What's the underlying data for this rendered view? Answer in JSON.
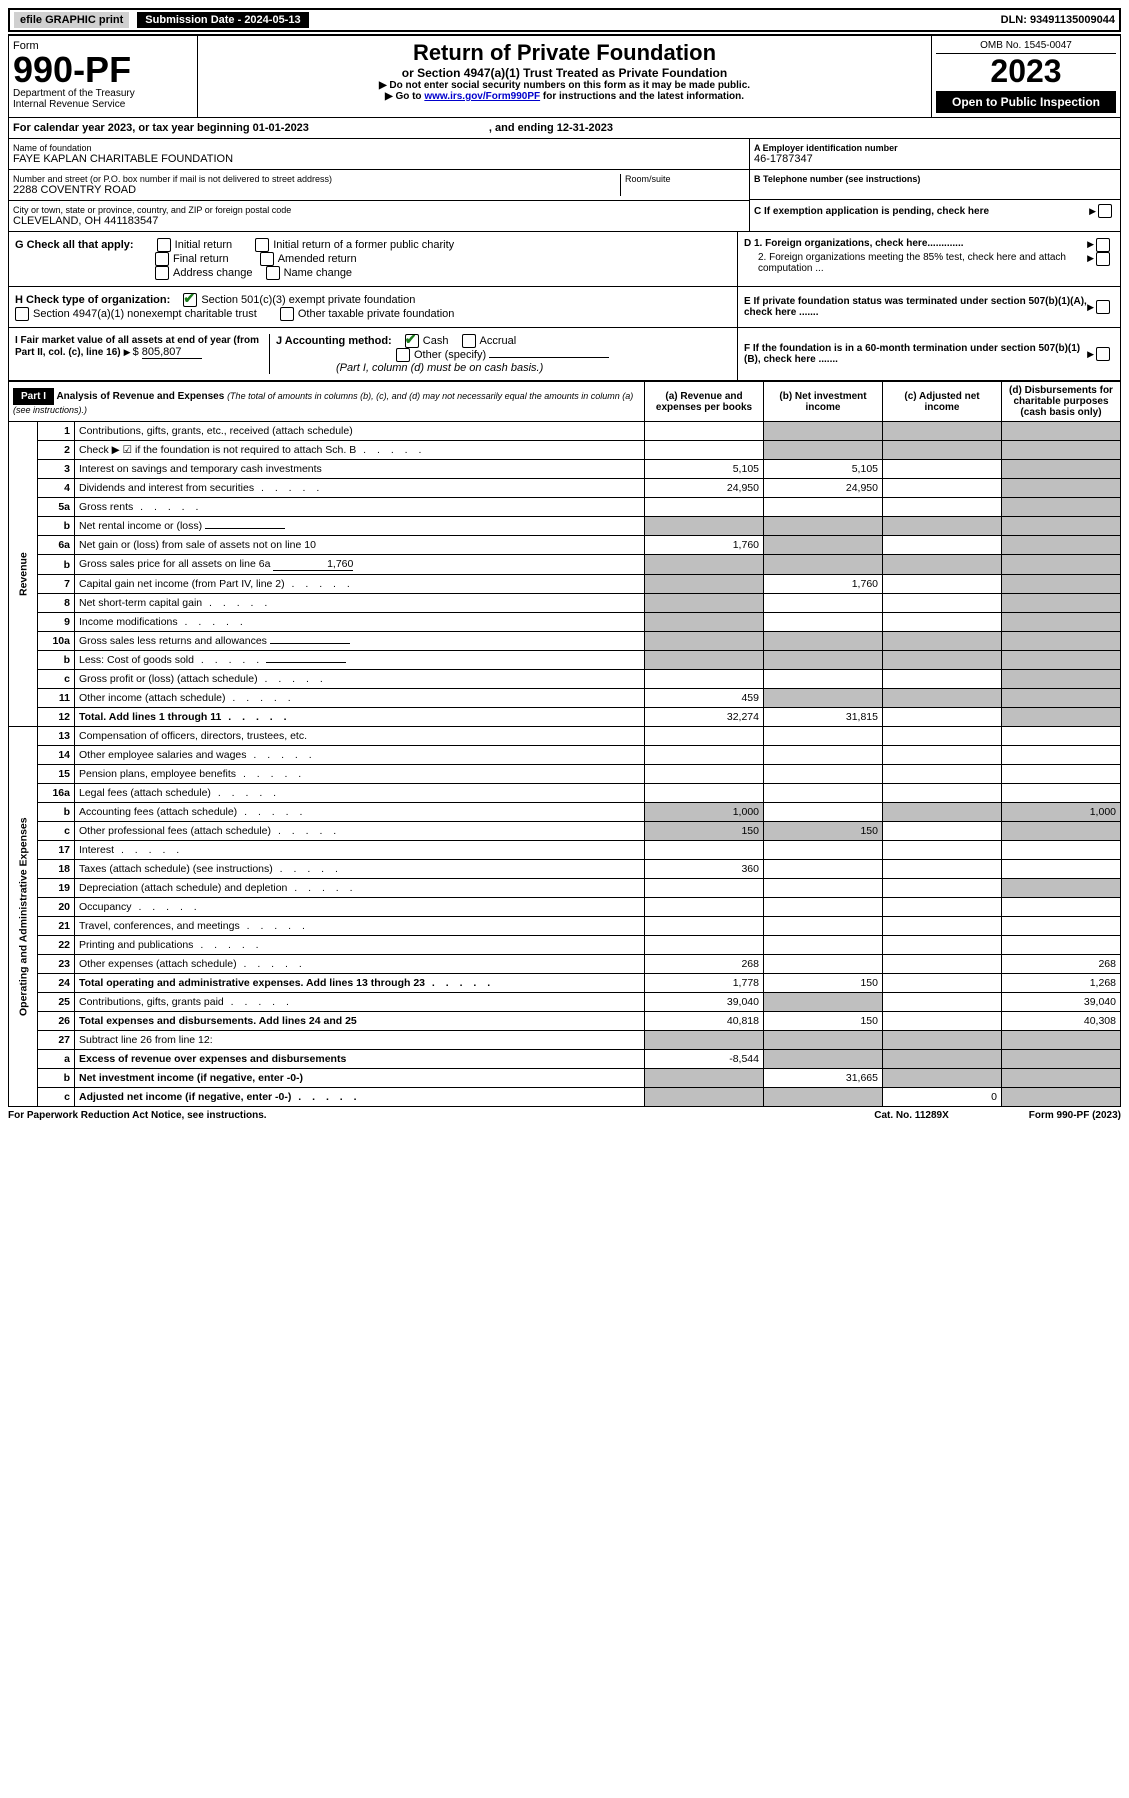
{
  "topbar": {
    "efile": "efile GRAPHIC print",
    "sub_label": "Submission Date - 2024-05-13",
    "dln": "DLN: 93491135009044"
  },
  "header": {
    "form_word": "Form",
    "form_num": "990-PF",
    "dept1": "Department of the Treasury",
    "dept2": "Internal Revenue Service",
    "title": "Return of Private Foundation",
    "subtitle": "or Section 4947(a)(1) Trust Treated as Private Foundation",
    "note1": "▶ Do not enter social security numbers on this form as it may be made public.",
    "note2_pre": "▶ Go to ",
    "note2_link": "www.irs.gov/Form990PF",
    "note2_post": " for instructions and the latest information.",
    "omb": "OMB No. 1545-0047",
    "year": "2023",
    "open": "Open to Public Inspection"
  },
  "cal": {
    "text": "For calendar year 2023, or tax year beginning 01-01-2023",
    "end": ", and ending 12-31-2023"
  },
  "id": {
    "name_lbl": "Name of foundation",
    "name": "FAYE KAPLAN CHARITABLE FOUNDATION",
    "street_lbl": "Number and street (or P.O. box number if mail is not delivered to street address)",
    "room_lbl": "Room/suite",
    "street": "2288 COVENTRY ROAD",
    "city_lbl": "City or town, state or province, country, and ZIP or foreign postal code",
    "city": "CLEVELAND, OH  441183547",
    "a_lbl": "A Employer identification number",
    "a_val": "46-1787347",
    "b_lbl": "B Telephone number (see instructions)",
    "c_lbl": "C If exemption application is pending, check here",
    "d1": "D 1. Foreign organizations, check here.............",
    "d2": "2. Foreign organizations meeting the 85% test, check here and attach computation ...",
    "e": "E  If private foundation status was terminated under section 507(b)(1)(A), check here .......",
    "f": "F  If the foundation is in a 60-month termination under section 507(b)(1)(B), check here ......."
  },
  "g": {
    "label": "G Check all that apply:",
    "initial": "Initial return",
    "initial_former": "Initial return of a former public charity",
    "final": "Final return",
    "amended": "Amended return",
    "address": "Address change",
    "name": "Name change"
  },
  "h": {
    "label": "H Check type of organization:",
    "s501": "Section 501(c)(3) exempt private foundation",
    "s4947": "Section 4947(a)(1) nonexempt charitable trust",
    "other_tax": "Other taxable private foundation"
  },
  "i": {
    "label": "I Fair market value of all assets at end of year (from Part II, col. (c), line 16)",
    "val": "805,807"
  },
  "j": {
    "label": "J Accounting method:",
    "cash": "Cash",
    "accrual": "Accrual",
    "other": "Other (specify)",
    "note": "(Part I, column (d) must be on cash basis.)"
  },
  "part1": {
    "label": "Part I",
    "title": "Analysis of Revenue and Expenses",
    "note": "(The total of amounts in columns (b), (c), and (d) may not necessarily equal the amounts in column (a) (see instructions).)",
    "col_a": "(a)  Revenue and expenses per books",
    "col_b": "(b)  Net investment income",
    "col_c": "(c)  Adjusted net income",
    "col_d": "(d)  Disbursements for charitable purposes (cash basis only)"
  },
  "vlabels": {
    "revenue": "Revenue",
    "expenses": "Operating and Administrative Expenses"
  },
  "rows": [
    {
      "n": "1",
      "d": "Contributions, gifts, grants, etc., received (attach schedule)",
      "a": "",
      "b": "",
      "c": "",
      "dd": ""
    },
    {
      "n": "2",
      "d": "Check ▶ ☑ if the foundation is not required to attach Sch. B",
      "a": "",
      "b": "",
      "c": "",
      "dd": "",
      "dots": true
    },
    {
      "n": "3",
      "d": "Interest on savings and temporary cash investments",
      "a": "5,105",
      "b": "5,105",
      "c": "",
      "dd": ""
    },
    {
      "n": "4",
      "d": "Dividends and interest from securities",
      "a": "24,950",
      "b": "24,950",
      "c": "",
      "dd": "",
      "dots": true
    },
    {
      "n": "5a",
      "d": "Gross rents",
      "a": "",
      "b": "",
      "c": "",
      "dd": "",
      "dots": true
    },
    {
      "n": "b",
      "d": "Net rental income or (loss)",
      "a": "",
      "b": "",
      "c": "",
      "dd": "",
      "inline": true
    },
    {
      "n": "6a",
      "d": "Net gain or (loss) from sale of assets not on line 10",
      "a": "1,760",
      "b": "",
      "c": "",
      "dd": ""
    },
    {
      "n": "b",
      "d": "Gross sales price for all assets on line 6a",
      "a": "",
      "b": "",
      "c": "",
      "dd": "",
      "inline": true,
      "inline_val": "1,760"
    },
    {
      "n": "7",
      "d": "Capital gain net income (from Part IV, line 2)",
      "a": "",
      "b": "1,760",
      "c": "",
      "dd": "",
      "dots": true
    },
    {
      "n": "8",
      "d": "Net short-term capital gain",
      "a": "",
      "b": "",
      "c": "",
      "dd": "",
      "dots": true
    },
    {
      "n": "9",
      "d": "Income modifications",
      "a": "",
      "b": "",
      "c": "",
      "dd": "",
      "dots": true
    },
    {
      "n": "10a",
      "d": "Gross sales less returns and allowances",
      "a": "",
      "b": "",
      "c": "",
      "dd": "",
      "inline": true
    },
    {
      "n": "b",
      "d": "Less: Cost of goods sold",
      "a": "",
      "b": "",
      "c": "",
      "dd": "",
      "inline": true,
      "dots": true
    },
    {
      "n": "c",
      "d": "Gross profit or (loss) (attach schedule)",
      "a": "",
      "b": "",
      "c": "",
      "dd": "",
      "dots": true
    },
    {
      "n": "11",
      "d": "Other income (attach schedule)",
      "a": "459",
      "b": "",
      "c": "",
      "dd": "",
      "dots": true
    },
    {
      "n": "12",
      "d": "Total. Add lines 1 through 11",
      "a": "32,274",
      "b": "31,815",
      "c": "",
      "dd": "",
      "bold": true,
      "dots": true
    }
  ],
  "exp_rows": [
    {
      "n": "13",
      "d": "Compensation of officers, directors, trustees, etc.",
      "a": "",
      "b": "",
      "c": "",
      "dd": ""
    },
    {
      "n": "14",
      "d": "Other employee salaries and wages",
      "a": "",
      "b": "",
      "c": "",
      "dd": "",
      "dots": true
    },
    {
      "n": "15",
      "d": "Pension plans, employee benefits",
      "a": "",
      "b": "",
      "c": "",
      "dd": "",
      "dots": true
    },
    {
      "n": "16a",
      "d": "Legal fees (attach schedule)",
      "a": "",
      "b": "",
      "c": "",
      "dd": "",
      "dots": true
    },
    {
      "n": "b",
      "d": "Accounting fees (attach schedule)",
      "a": "1,000",
      "b": "",
      "c": "",
      "dd": "1,000",
      "dots": true
    },
    {
      "n": "c",
      "d": "Other professional fees (attach schedule)",
      "a": "150",
      "b": "150",
      "c": "",
      "dd": "",
      "dots": true
    },
    {
      "n": "17",
      "d": "Interest",
      "a": "",
      "b": "",
      "c": "",
      "dd": "",
      "dots": true
    },
    {
      "n": "18",
      "d": "Taxes (attach schedule) (see instructions)",
      "a": "360",
      "b": "",
      "c": "",
      "dd": "",
      "dots": true
    },
    {
      "n": "19",
      "d": "Depreciation (attach schedule) and depletion",
      "a": "",
      "b": "",
      "c": "",
      "dd": "",
      "dots": true
    },
    {
      "n": "20",
      "d": "Occupancy",
      "a": "",
      "b": "",
      "c": "",
      "dd": "",
      "dots": true
    },
    {
      "n": "21",
      "d": "Travel, conferences, and meetings",
      "a": "",
      "b": "",
      "c": "",
      "dd": "",
      "dots": true
    },
    {
      "n": "22",
      "d": "Printing and publications",
      "a": "",
      "b": "",
      "c": "",
      "dd": "",
      "dots": true
    },
    {
      "n": "23",
      "d": "Other expenses (attach schedule)",
      "a": "268",
      "b": "",
      "c": "",
      "dd": "268",
      "dots": true
    },
    {
      "n": "24",
      "d": "Total operating and administrative expenses. Add lines 13 through 23",
      "a": "1,778",
      "b": "150",
      "c": "",
      "dd": "1,268",
      "bold": true,
      "dots": true
    },
    {
      "n": "25",
      "d": "Contributions, gifts, grants paid",
      "a": "39,040",
      "b": "",
      "c": "",
      "dd": "39,040",
      "dots": true
    },
    {
      "n": "26",
      "d": "Total expenses and disbursements. Add lines 24 and 25",
      "a": "40,818",
      "b": "150",
      "c": "",
      "dd": "40,308",
      "bold": true
    },
    {
      "n": "27",
      "d": "Subtract line 26 from line 12:",
      "a": "",
      "b": "",
      "c": "",
      "dd": ""
    },
    {
      "n": "a",
      "d": "Excess of revenue over expenses and disbursements",
      "a": "-8,544",
      "b": "",
      "c": "",
      "dd": "",
      "bold": true
    },
    {
      "n": "b",
      "d": "Net investment income (if negative, enter -0-)",
      "a": "",
      "b": "31,665",
      "c": "",
      "dd": "",
      "bold": true
    },
    {
      "n": "c",
      "d": "Adjusted net income (if negative, enter -0-)",
      "a": "",
      "b": "",
      "c": "0",
      "dd": "",
      "bold": true,
      "dots": true
    }
  ],
  "shading": {
    "rev_b": [
      "1",
      "2",
      "b_5",
      "6a",
      "b_6",
      "10a",
      "b_10",
      "c"
    ],
    "rev_c": [
      "1",
      "2",
      "b_5",
      "b_6",
      "10a",
      "b_10"
    ],
    "rev_d_all": true,
    "exp_b": [
      "25",
      "27",
      "a",
      "b",
      "c"
    ],
    "exp_c": [
      "27",
      "a",
      "b"
    ],
    "exp_d": [
      "19",
      "27",
      "a",
      "b",
      "c"
    ]
  },
  "footer": {
    "left": "For Paperwork Reduction Act Notice, see instructions.",
    "cat": "Cat. No. 11289X",
    "form": "Form 990-PF (2023)"
  }
}
